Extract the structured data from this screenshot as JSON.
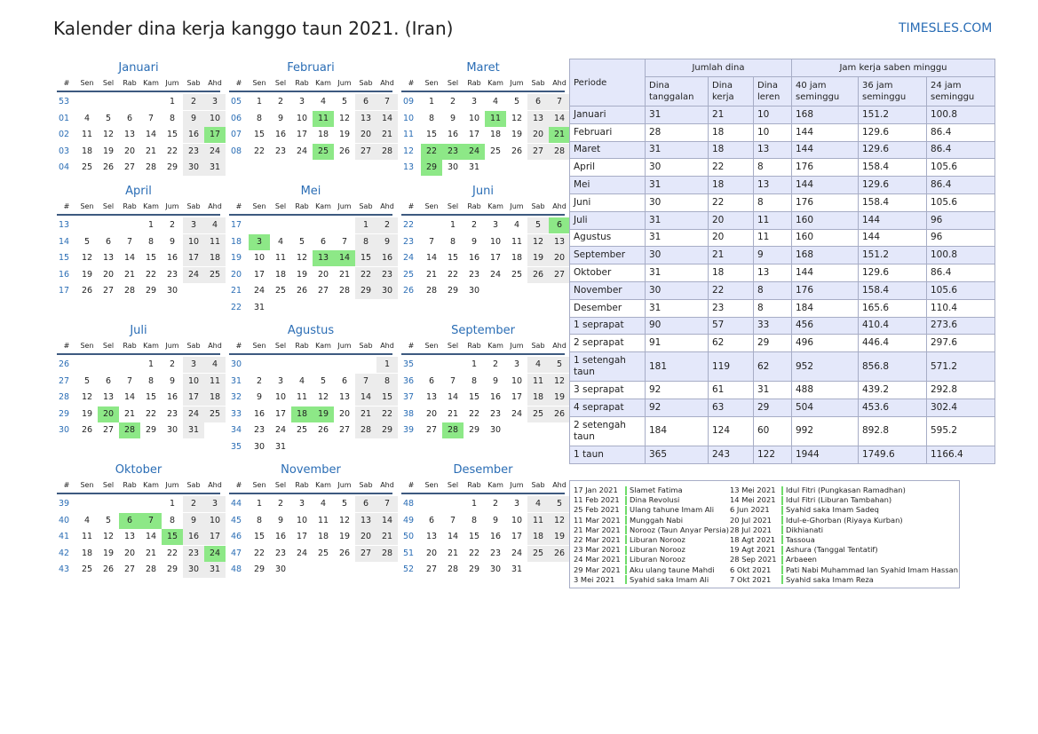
{
  "title": "Kalender dina kerja kanggo taun 2021. (Iran)",
  "brand": "TIMESLES.COM",
  "weekday_header": [
    "#",
    "Sen",
    "Sel",
    "Rab",
    "Kam",
    "Jum",
    "Sab",
    "Ahd"
  ],
  "months": [
    {
      "name": "Januari",
      "weeks": [
        53,
        1,
        2,
        3,
        4
      ],
      "offset": 4,
      "days": 31,
      "holidays": [
        17
      ]
    },
    {
      "name": "Februari",
      "weeks": [
        5,
        6,
        7,
        8
      ],
      "offset": 0,
      "days": 28,
      "holidays": [
        11,
        25
      ]
    },
    {
      "name": "Maret",
      "weeks": [
        9,
        10,
        11,
        12,
        13
      ],
      "offset": 0,
      "days": 31,
      "holidays": [
        11,
        21,
        22,
        23,
        24,
        29
      ]
    },
    {
      "name": "April",
      "weeks": [
        13,
        14,
        15,
        16,
        17
      ],
      "offset": 3,
      "days": 30,
      "holidays": []
    },
    {
      "name": "Mei",
      "weeks": [
        17,
        18,
        19,
        20,
        21,
        22
      ],
      "offset": 5,
      "days": 31,
      "holidays": [
        3,
        13,
        14
      ]
    },
    {
      "name": "Juni",
      "weeks": [
        22,
        23,
        24,
        25,
        26
      ],
      "offset": 1,
      "days": 30,
      "holidays": [
        6
      ]
    },
    {
      "name": "Juli",
      "weeks": [
        26,
        27,
        28,
        29,
        30
      ],
      "offset": 3,
      "days": 31,
      "holidays": [
        20,
        28
      ]
    },
    {
      "name": "Agustus",
      "weeks": [
        30,
        31,
        32,
        33,
        34,
        35
      ],
      "offset": 6,
      "days": 31,
      "holidays": [
        18,
        19
      ]
    },
    {
      "name": "September",
      "weeks": [
        35,
        36,
        37,
        38,
        39
      ],
      "offset": 2,
      "days": 30,
      "holidays": [
        28
      ]
    },
    {
      "name": "Oktober",
      "weeks": [
        39,
        40,
        41,
        42,
        43
      ],
      "offset": 4,
      "days": 31,
      "holidays": [
        6,
        7,
        15,
        24
      ]
    },
    {
      "name": "November",
      "weeks": [
        44,
        45,
        46,
        47,
        48
      ],
      "offset": 0,
      "days": 30,
      "holidays": []
    },
    {
      "name": "Desember",
      "weeks": [
        48,
        49,
        50,
        51,
        52
      ],
      "offset": 2,
      "days": 31,
      "holidays": []
    }
  ],
  "summary": {
    "periode_label": "Periode",
    "group1": "Jumlah dina",
    "group2": "Jam kerja saben minggu",
    "sub": [
      "Dina tanggalan",
      "Dina kerja",
      "Dina leren",
      "40 jam seminggu",
      "36 jam seminggu",
      "24 jam seminggu"
    ],
    "rows": [
      [
        "Januari",
        "31",
        "21",
        "10",
        "168",
        "151.2",
        "100.8"
      ],
      [
        "Februari",
        "28",
        "18",
        "10",
        "144",
        "129.6",
        "86.4"
      ],
      [
        "Maret",
        "31",
        "18",
        "13",
        "144",
        "129.6",
        "86.4"
      ],
      [
        "April",
        "30",
        "22",
        "8",
        "176",
        "158.4",
        "105.6"
      ],
      [
        "Mei",
        "31",
        "18",
        "13",
        "144",
        "129.6",
        "86.4"
      ],
      [
        "Juni",
        "30",
        "22",
        "8",
        "176",
        "158.4",
        "105.6"
      ],
      [
        "Juli",
        "31",
        "20",
        "11",
        "160",
        "144",
        "96"
      ],
      [
        "Agustus",
        "31",
        "20",
        "11",
        "160",
        "144",
        "96"
      ],
      [
        "September",
        "30",
        "21",
        "9",
        "168",
        "151.2",
        "100.8"
      ],
      [
        "Oktober",
        "31",
        "18",
        "13",
        "144",
        "129.6",
        "86.4"
      ],
      [
        "November",
        "30",
        "22",
        "8",
        "176",
        "158.4",
        "105.6"
      ],
      [
        "Desember",
        "31",
        "23",
        "8",
        "184",
        "165.6",
        "110.4"
      ],
      [
        "1 seprapat",
        "90",
        "57",
        "33",
        "456",
        "410.4",
        "273.6"
      ],
      [
        "2 seprapat",
        "91",
        "62",
        "29",
        "496",
        "446.4",
        "297.6"
      ],
      [
        "1 setengah taun",
        "181",
        "119",
        "62",
        "952",
        "856.8",
        "571.2"
      ],
      [
        "3 seprapat",
        "92",
        "61",
        "31",
        "488",
        "439.2",
        "292.8"
      ],
      [
        "4 seprapat",
        "92",
        "63",
        "29",
        "504",
        "453.6",
        "302.4"
      ],
      [
        "2 setengah taun",
        "184",
        "124",
        "60",
        "992",
        "892.8",
        "595.2"
      ],
      [
        "1 taun",
        "365",
        "243",
        "122",
        "1944",
        "1749.6",
        "1166.4"
      ]
    ]
  },
  "holidays_left": [
    [
      "17 Jan 2021",
      "Slamet Fatima"
    ],
    [
      "11 Feb 2021",
      "Dina Revolusi"
    ],
    [
      "25 Feb 2021",
      "Ulang tahune Imam Ali"
    ],
    [
      "11 Mar 2021",
      "Munggah Nabi"
    ],
    [
      "21 Mar 2021",
      "Norooz (Taun Anyar Persia)"
    ],
    [
      "22 Mar 2021",
      "Liburan Norooz"
    ],
    [
      "23 Mar 2021",
      "Liburan Norooz"
    ],
    [
      "24 Mar 2021",
      "Liburan Norooz"
    ],
    [
      "29 Mar 2021",
      "Aku ulang taune Mahdi"
    ],
    [
      "3 Mei 2021",
      "Syahid saka Imam Ali"
    ]
  ],
  "holidays_right": [
    [
      "13 Mei 2021",
      "Idul Fitri (Pungkasan Ramadhan)"
    ],
    [
      "14 Mei 2021",
      "Idul Fitri (Liburan Tambahan)"
    ],
    [
      "6 Jun 2021",
      "Syahid saka Imam Sadeq"
    ],
    [
      "20 Jul 2021",
      "Idul-e-Ghorban (Riyaya Kurban)"
    ],
    [
      "28 Jul 2021",
      "Dikhianati"
    ],
    [
      "18 Agt 2021",
      "Tassoua"
    ],
    [
      "19 Agt 2021",
      "Ashura (Tanggal Tentatif)"
    ],
    [
      "28 Sep 2021",
      "Arbaeen"
    ],
    [
      "6 Okt 2021",
      "Pati Nabi Muhammad lan Syahid Imam Hassan"
    ],
    [
      "7 Okt 2021",
      "Syahid saka Imam Reza"
    ]
  ],
  "colors": {
    "accent": "#2a6db5",
    "holiday": "#8de887",
    "weekend": "#ececec",
    "table_alt": "#e4e8fa",
    "rule": "#3d5a80"
  }
}
